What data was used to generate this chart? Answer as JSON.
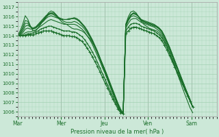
{
  "background_color": "#cce8d8",
  "grid_color": "#99ccaa",
  "line_color": "#1a6e2a",
  "ylim": [
    1005.5,
    1017.5
  ],
  "yticks": [
    1006,
    1007,
    1008,
    1009,
    1010,
    1011,
    1012,
    1013,
    1014,
    1015,
    1016,
    1017
  ],
  "xlabel": "Pression niveau de la mer( hPa )",
  "xtick_labels": [
    "Mar",
    "Mer",
    "Jeu",
    "Ven",
    "Sam"
  ],
  "xtick_positions": [
    0,
    24,
    48,
    72,
    96
  ],
  "xlim": [
    0,
    110
  ],
  "series": [
    [
      1014.0,
      1014.5,
      1015.2,
      1016.1,
      1015.7,
      1015.0,
      1014.5,
      1014.5,
      1014.8,
      1015.2,
      1015.6,
      1016.0,
      1016.4,
      1016.6,
      1016.5,
      1016.2,
      1015.8,
      1015.5,
      1015.3,
      1015.2,
      1015.0,
      1014.8,
      1014.7,
      1014.7,
      1014.6,
      1014.5,
      1014.3,
      1014.0,
      1013.7,
      1013.3,
      1012.8,
      1012.2,
      1011.6,
      1011.0,
      1010.4,
      1009.7,
      1009.0,
      1008.3,
      1007.6,
      1006.9,
      1006.3,
      1005.8,
      1015.2,
      1016.0,
      1016.5,
      1016.6,
      1016.4,
      1016.0,
      1015.5,
      1015.2,
      1015.0,
      1014.8,
      1014.7,
      1014.6,
      1014.5,
      1014.3,
      1014.0,
      1013.5,
      1012.9,
      1012.2,
      1011.5,
      1010.8,
      1010.0,
      1009.3,
      1008.5,
      1007.8,
      1007.1,
      1006.4,
      1005.9
    ],
    [
      1014.0,
      1014.3,
      1014.9,
      1015.6,
      1015.5,
      1015.0,
      1014.7,
      1014.8,
      1015.0,
      1015.3,
      1015.6,
      1015.9,
      1016.2,
      1016.4,
      1016.4,
      1016.2,
      1015.9,
      1015.7,
      1015.5,
      1015.4,
      1015.4,
      1015.4,
      1015.5,
      1015.4,
      1015.2,
      1015.0,
      1014.7,
      1014.3,
      1013.9,
      1013.4,
      1012.8,
      1012.2,
      1011.5,
      1010.8,
      1010.1,
      1009.4,
      1008.7,
      1008.0,
      1007.3,
      1006.7,
      1006.1,
      1005.8,
      1015.0,
      1015.6,
      1016.1,
      1016.4,
      1016.3,
      1016.0,
      1015.6,
      1015.4,
      1015.3,
      1015.2,
      1015.1,
      1015.0,
      1014.9,
      1014.7,
      1014.4,
      1013.9,
      1013.3,
      1012.7,
      1012.0,
      1011.3,
      1010.6,
      1009.9,
      1009.2,
      1008.5,
      1007.9,
      1007.2,
      1006.5
    ],
    [
      1014.0,
      1014.2,
      1014.7,
      1015.3,
      1015.3,
      1014.9,
      1014.8,
      1014.9,
      1015.2,
      1015.5,
      1015.8,
      1016.1,
      1016.3,
      1016.4,
      1016.3,
      1016.1,
      1015.9,
      1015.8,
      1015.7,
      1015.7,
      1015.7,
      1015.8,
      1015.8,
      1015.7,
      1015.5,
      1015.2,
      1014.9,
      1014.5,
      1014.0,
      1013.5,
      1012.9,
      1012.3,
      1011.6,
      1010.9,
      1010.2,
      1009.5,
      1008.8,
      1008.1,
      1007.4,
      1006.7,
      1006.1,
      1005.8,
      1015.1,
      1015.7,
      1016.2,
      1016.4,
      1016.3,
      1016.0,
      1015.7,
      1015.5,
      1015.4,
      1015.3,
      1015.2,
      1015.1,
      1015.0,
      1014.8,
      1014.5,
      1014.0,
      1013.4,
      1012.8,
      1012.1,
      1011.4,
      1010.7,
      1010.0,
      1009.3,
      1008.6,
      1007.9,
      1007.2,
      1006.5
    ],
    [
      1014.0,
      1014.1,
      1014.5,
      1015.0,
      1015.1,
      1014.9,
      1014.8,
      1014.9,
      1015.1,
      1015.4,
      1015.7,
      1016.0,
      1016.2,
      1016.3,
      1016.2,
      1016.0,
      1015.8,
      1015.7,
      1015.7,
      1015.7,
      1015.8,
      1015.8,
      1015.9,
      1015.8,
      1015.6,
      1015.3,
      1015.0,
      1014.6,
      1014.1,
      1013.6,
      1013.0,
      1012.4,
      1011.7,
      1011.0,
      1010.3,
      1009.6,
      1008.9,
      1008.2,
      1007.5,
      1006.8,
      1006.2,
      1005.8,
      1015.2,
      1015.8,
      1016.2,
      1016.3,
      1016.2,
      1016.0,
      1015.7,
      1015.6,
      1015.5,
      1015.4,
      1015.3,
      1015.2,
      1015.0,
      1014.8,
      1014.5,
      1014.0,
      1013.4,
      1012.8,
      1012.1,
      1011.4,
      1010.7,
      1010.0,
      1009.3,
      1008.6,
      1007.9,
      1007.3,
      1006.5
    ],
    [
      1014.0,
      1014.0,
      1014.3,
      1014.7,
      1014.8,
      1014.7,
      1014.7,
      1014.8,
      1015.0,
      1015.3,
      1015.5,
      1015.8,
      1016.0,
      1016.1,
      1016.0,
      1015.9,
      1015.8,
      1015.7,
      1015.7,
      1015.7,
      1015.7,
      1015.8,
      1015.8,
      1015.7,
      1015.5,
      1015.2,
      1014.9,
      1014.5,
      1014.0,
      1013.5,
      1012.9,
      1012.3,
      1011.6,
      1011.0,
      1010.3,
      1009.6,
      1008.9,
      1008.2,
      1007.5,
      1006.8,
      1006.2,
      1005.8,
      1015.0,
      1015.6,
      1016.0,
      1016.1,
      1016.0,
      1015.8,
      1015.6,
      1015.5,
      1015.4,
      1015.3,
      1015.2,
      1015.1,
      1014.9,
      1014.7,
      1014.4,
      1013.9,
      1013.3,
      1012.7,
      1012.0,
      1011.3,
      1010.6,
      1009.9,
      1009.2,
      1008.5,
      1007.9,
      1007.2,
      1006.5
    ],
    [
      1014.0,
      1014.0,
      1014.1,
      1014.3,
      1014.4,
      1014.4,
      1014.5,
      1014.6,
      1014.8,
      1015.0,
      1015.2,
      1015.4,
      1015.6,
      1015.7,
      1015.6,
      1015.5,
      1015.4,
      1015.3,
      1015.2,
      1015.2,
      1015.2,
      1015.2,
      1015.2,
      1015.1,
      1014.9,
      1014.7,
      1014.4,
      1014.0,
      1013.6,
      1013.1,
      1012.5,
      1011.9,
      1011.3,
      1010.6,
      1010.0,
      1009.3,
      1008.6,
      1007.9,
      1007.3,
      1006.7,
      1006.1,
      1005.8,
      1014.8,
      1015.3,
      1015.7,
      1015.8,
      1015.8,
      1015.6,
      1015.4,
      1015.3,
      1015.2,
      1015.1,
      1015.0,
      1014.9,
      1014.7,
      1014.5,
      1014.2,
      1013.7,
      1013.1,
      1012.5,
      1011.8,
      1011.1,
      1010.5,
      1009.8,
      1009.1,
      1008.5,
      1007.8,
      1007.2,
      1006.5
    ],
    [
      1014.0,
      1014.0,
      1014.0,
      1014.1,
      1014.2,
      1014.2,
      1014.3,
      1014.4,
      1014.5,
      1014.7,
      1014.8,
      1014.9,
      1015.0,
      1015.0,
      1014.9,
      1014.8,
      1014.7,
      1014.6,
      1014.5,
      1014.5,
      1014.5,
      1014.4,
      1014.4,
      1014.3,
      1014.1,
      1013.9,
      1013.6,
      1013.2,
      1012.8,
      1012.3,
      1011.8,
      1011.2,
      1010.6,
      1010.0,
      1009.4,
      1008.8,
      1008.2,
      1007.6,
      1007.0,
      1006.5,
      1006.0,
      1005.8,
      1014.5,
      1014.9,
      1015.2,
      1015.3,
      1015.3,
      1015.2,
      1015.0,
      1014.9,
      1014.8,
      1014.7,
      1014.6,
      1014.5,
      1014.3,
      1014.1,
      1013.8,
      1013.3,
      1012.8,
      1012.2,
      1011.5,
      1010.9,
      1010.2,
      1009.6,
      1008.9,
      1008.3,
      1007.7,
      1007.1,
      1006.5
    ],
    [
      1014.0,
      1014.0,
      1014.0,
      1014.0,
      1014.1,
      1014.1,
      1014.1,
      1014.2,
      1014.3,
      1014.4,
      1014.5,
      1014.5,
      1014.5,
      1014.5,
      1014.4,
      1014.3,
      1014.2,
      1014.1,
      1014.0,
      1014.0,
      1014.0,
      1013.9,
      1013.9,
      1013.8,
      1013.6,
      1013.4,
      1013.1,
      1012.7,
      1012.3,
      1011.8,
      1011.3,
      1010.8,
      1010.2,
      1009.6,
      1009.0,
      1008.5,
      1007.9,
      1007.3,
      1006.8,
      1006.3,
      1005.9,
      1005.8,
      1014.2,
      1014.5,
      1014.8,
      1014.9,
      1014.9,
      1014.8,
      1014.7,
      1014.6,
      1014.5,
      1014.4,
      1014.3,
      1014.2,
      1014.0,
      1013.8,
      1013.5,
      1013.0,
      1012.5,
      1011.9,
      1011.3,
      1010.7,
      1010.1,
      1009.5,
      1008.9,
      1008.3,
      1007.7,
      1007.1,
      1006.5
    ]
  ]
}
